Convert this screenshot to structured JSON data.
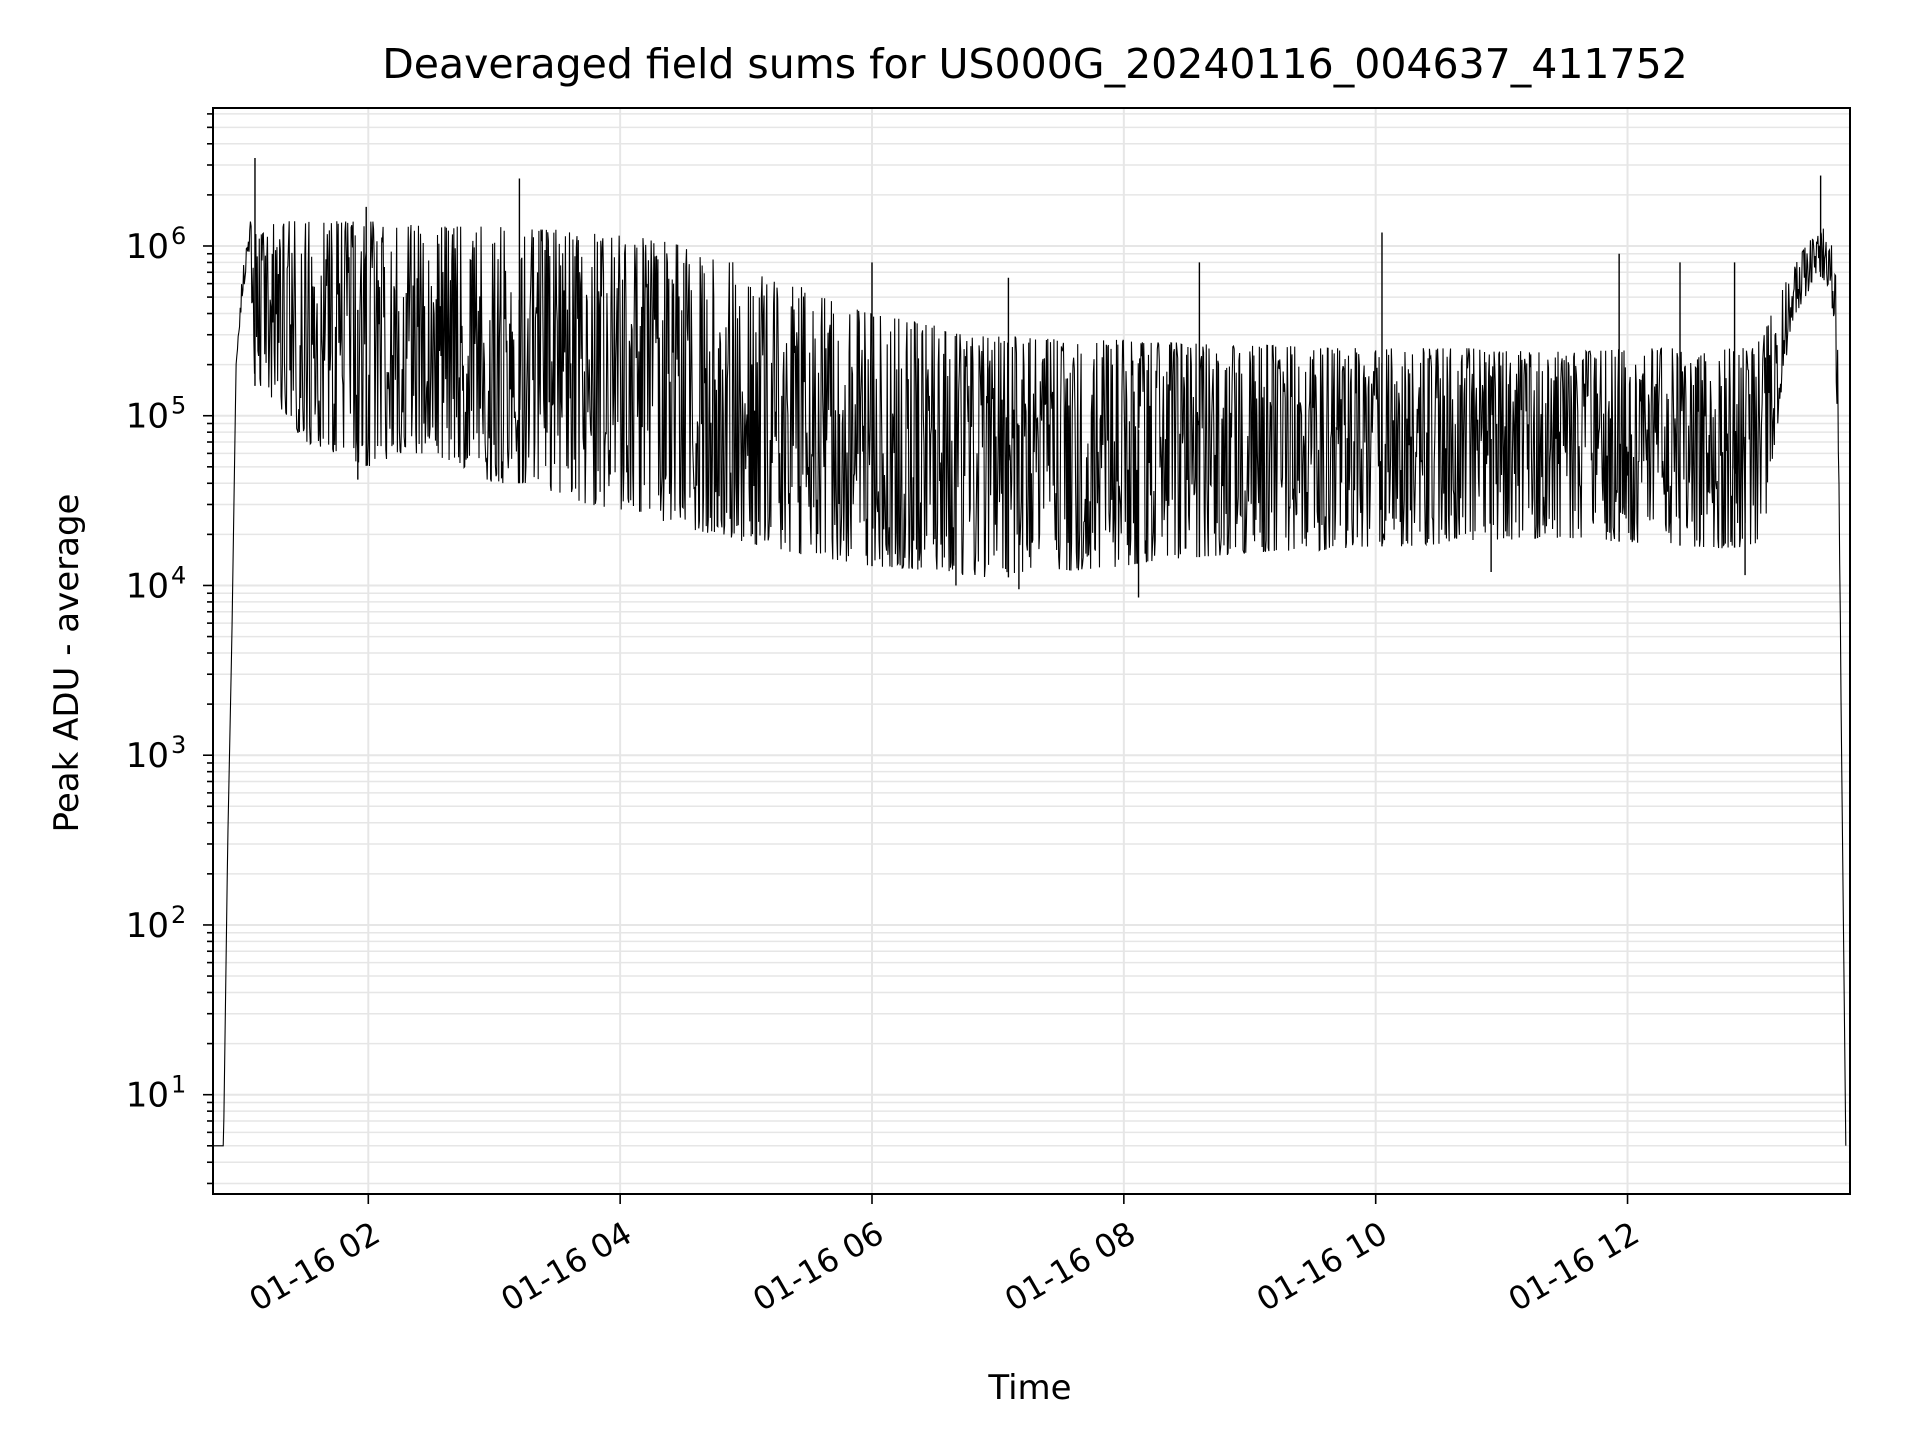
{
  "chart_data": {
    "type": "line",
    "title": "Deaveraged field sums for US000G_20240116_004637_411752",
    "xlabel": "Time",
    "ylabel": "Peak ADU - average",
    "yscale": "log",
    "ylim": [
      2.6,
      6500000
    ],
    "xlim": [
      "2024-01-16 00:46",
      "2024-01-16 13:46"
    ],
    "grid": true,
    "line_color": "#000000",
    "grid_color": "#e6e6e6",
    "x_ticks": [
      {
        "t": "2024-01-16 02:00",
        "label": "01-16 02"
      },
      {
        "t": "2024-01-16 04:00",
        "label": "01-16 04"
      },
      {
        "t": "2024-01-16 06:00",
        "label": "01-16 06"
      },
      {
        "t": "2024-01-16 08:00",
        "label": "01-16 08"
      },
      {
        "t": "2024-01-16 10:00",
        "label": "01-16 10"
      },
      {
        "t": "2024-01-16 12:00",
        "label": "01-16 12"
      }
    ],
    "y_ticks": [
      {
        "value": 10,
        "base": "10",
        "exp": "1"
      },
      {
        "value": 100,
        "base": "10",
        "exp": "2"
      },
      {
        "value": 1000,
        "base": "10",
        "exp": "3"
      },
      {
        "value": 10000,
        "base": "10",
        "exp": "4"
      },
      {
        "value": 100000,
        "base": "10",
        "exp": "5"
      },
      {
        "value": 1000000,
        "base": "10",
        "exp": "6"
      }
    ],
    "series": [
      {
        "x": [
          "2024-01-16 00:46",
          "2024-01-16 00:50",
          "2024-01-16 00:51",
          "2024-01-16 00:53",
          "2024-01-16 00:55",
          "2024-01-16 00:57",
          "2024-01-16 01:00",
          "2024-01-16 01:02",
          "2024-01-16 01:03",
          "2024-01-16 01:04",
          "2024-01-16 01:05",
          "2024-01-16 01:06",
          "2024-01-16 01:10",
          "2024-01-16 01:20",
          "2024-01-16 01:30",
          "2024-01-16 01:45",
          "2024-01-16 02:00",
          "2024-01-16 02:15",
          "2024-01-16 02:30",
          "2024-01-16 02:45",
          "2024-01-16 03:00",
          "2024-01-16 03:10",
          "2024-01-16 03:15",
          "2024-01-16 03:30",
          "2024-01-16 03:45",
          "2024-01-16 04:00",
          "2024-01-16 04:15",
          "2024-01-16 04:30",
          "2024-01-16 04:45",
          "2024-01-16 05:00",
          "2024-01-16 05:15",
          "2024-01-16 05:30",
          "2024-01-16 05:45",
          "2024-01-16 06:00",
          "2024-01-16 06:15",
          "2024-01-16 06:30",
          "2024-01-16 06:45",
          "2024-01-16 07:00",
          "2024-01-16 07:15",
          "2024-01-16 07:30",
          "2024-01-16 07:45",
          "2024-01-16 08:00",
          "2024-01-16 08:15",
          "2024-01-16 08:30",
          "2024-01-16 08:45",
          "2024-01-16 09:00",
          "2024-01-16 09:15",
          "2024-01-16 09:30",
          "2024-01-16 09:45",
          "2024-01-16 10:00",
          "2024-01-16 10:15",
          "2024-01-16 10:30",
          "2024-01-16 10:45",
          "2024-01-16 11:00",
          "2024-01-16 11:15",
          "2024-01-16 11:30",
          "2024-01-16 11:45",
          "2024-01-16 12:00",
          "2024-01-16 12:15",
          "2024-01-16 12:30",
          "2024-01-16 12:45",
          "2024-01-16 13:00",
          "2024-01-16 13:05",
          "2024-01-16 13:10",
          "2024-01-16 13:15",
          "2024-01-16 13:20",
          "2024-01-16 13:25",
          "2024-01-16 13:30",
          "2024-01-16 13:35",
          "2024-01-16 13:38",
          "2024-01-16 13:40",
          "2024-01-16 13:42",
          "2024-01-16 13:44"
        ],
        "low": [
          5,
          5,
          5,
          300,
          5000,
          200000,
          500000,
          700000,
          600000,
          500000,
          300000,
          150000,
          150000,
          100000,
          70000,
          60000,
          50000,
          60000,
          60000,
          50000,
          40000,
          40000,
          40000,
          35000,
          30000,
          28000,
          25000,
          22000,
          20000,
          18000,
          16000,
          15000,
          14000,
          13000,
          12500,
          12000,
          11500,
          11000,
          11500,
          12000,
          12500,
          13000,
          14000,
          14500,
          15000,
          15500,
          16000,
          16000,
          16500,
          17000,
          17000,
          17500,
          18000,
          18500,
          19000,
          19000,
          18500,
          18000,
          17500,
          17000,
          16500,
          17000,
          20000,
          60000,
          200000,
          400000,
          500000,
          700000,
          600000,
          400000,
          100000,
          1000,
          5
        ],
        "high": [
          5,
          5,
          5,
          300,
          5000,
          200000,
          700000,
          1000000,
          1300000,
          1500000,
          1300000,
          1200000,
          1300000,
          1400000,
          1400000,
          1400000,
          1400000,
          1350000,
          1300000,
          1300000,
          1300000,
          1300000,
          1250000,
          1250000,
          1200000,
          1150000,
          1100000,
          1000000,
          900000,
          800000,
          650000,
          550000,
          450000,
          400000,
          370000,
          340000,
          310000,
          300000,
          290000,
          280000,
          280000,
          280000,
          270000,
          270000,
          260000,
          260000,
          260000,
          250000,
          250000,
          250000,
          250000,
          250000,
          250000,
          240000,
          240000,
          240000,
          240000,
          250000,
          250000,
          250000,
          250000,
          250000,
          300000,
          450000,
          600000,
          800000,
          1000000,
          1200000,
          1300000,
          1000000,
          500000,
          1000,
          5
        ],
        "spikes": [
          {
            "t": "2024-01-16 01:06",
            "v": 3300000
          },
          {
            "t": "2024-01-16 01:59",
            "v": 1700000
          },
          {
            "t": "2024-01-16 03:12",
            "v": 2500000
          },
          {
            "t": "2024-01-16 06:00",
            "v": 800000
          },
          {
            "t": "2024-01-16 07:05",
            "v": 650000
          },
          {
            "t": "2024-01-16 08:36",
            "v": 800000
          },
          {
            "t": "2024-01-16 10:03",
            "v": 1200000
          },
          {
            "t": "2024-01-16 11:56",
            "v": 900000
          },
          {
            "t": "2024-01-16 12:25",
            "v": 800000
          },
          {
            "t": "2024-01-16 12:51",
            "v": 800000
          },
          {
            "t": "2024-01-16 13:32",
            "v": 2600000
          }
        ],
        "dips": [
          {
            "t": "2024-01-16 01:55",
            "v": 42000
          },
          {
            "t": "2024-01-16 06:40",
            "v": 10000
          },
          {
            "t": "2024-01-16 07:10",
            "v": 9500
          },
          {
            "t": "2024-01-16 08:07",
            "v": 8500
          },
          {
            "t": "2024-01-16 10:55",
            "v": 12000
          },
          {
            "t": "2024-01-16 12:56",
            "v": 11500
          }
        ]
      }
    ]
  }
}
